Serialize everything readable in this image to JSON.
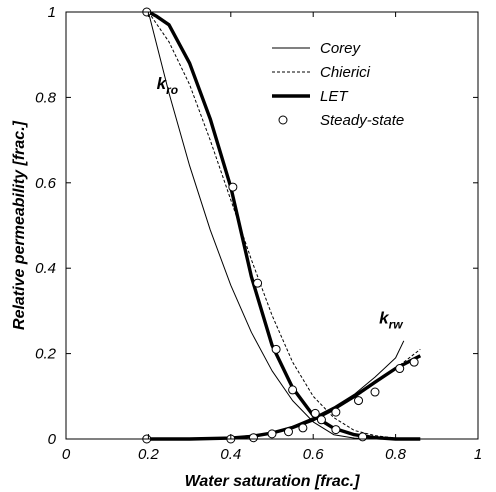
{
  "chart_data": {
    "type": "line",
    "title": "",
    "xlabel": "Water saturation [frac.]",
    "ylabel": "Relative permeability [frac.]",
    "xlim": [
      0,
      1
    ],
    "ylim": [
      0,
      1
    ],
    "x_ticks": [
      0,
      0.2,
      0.4,
      0.6,
      0.8,
      1
    ],
    "x_tick_labels": [
      "0",
      "0.2",
      "0.4",
      "0.6",
      "0.8",
      "1"
    ],
    "y_ticks": [
      0,
      0.2,
      0.4,
      0.6,
      0.8,
      1
    ],
    "y_tick_labels": [
      "0",
      "0.2",
      "0.4",
      "0.6",
      "0.8",
      "1"
    ],
    "grid": false,
    "legend_position": "top-right",
    "legend": [
      {
        "label": "Corey",
        "style": "thin-solid"
      },
      {
        "label": "Chierici",
        "style": "dotted"
      },
      {
        "label": "LET",
        "style": "thick-solid"
      },
      {
        "label": "Steady-state",
        "style": "open-circle"
      }
    ],
    "annotations": [
      {
        "text": "k",
        "sub": "ro",
        "x": 0.22,
        "y": 0.82
      },
      {
        "text": "k",
        "sub": "rw",
        "x": 0.76,
        "y": 0.27
      }
    ],
    "series": [
      {
        "name": "Corey",
        "group": "kro",
        "style": "thin-solid",
        "x": [
          0.2,
          0.25,
          0.3,
          0.35,
          0.4,
          0.45,
          0.5,
          0.55,
          0.6,
          0.65,
          0.7,
          0.75
        ],
        "y": [
          1.0,
          0.81,
          0.64,
          0.49,
          0.36,
          0.25,
          0.16,
          0.09,
          0.04,
          0.01,
          0.002,
          0.0
        ]
      },
      {
        "name": "Corey",
        "group": "krw",
        "style": "thin-solid",
        "x": [
          0.2,
          0.3,
          0.4,
          0.5,
          0.55,
          0.6,
          0.65,
          0.7,
          0.75,
          0.8,
          0.82
        ],
        "y": [
          0.0,
          0.0,
          0.003,
          0.015,
          0.03,
          0.05,
          0.075,
          0.105,
          0.145,
          0.19,
          0.23
        ]
      },
      {
        "name": "Chierici",
        "group": "kro",
        "style": "dotted",
        "x": [
          0.2,
          0.25,
          0.3,
          0.35,
          0.4,
          0.45,
          0.5,
          0.55,
          0.6,
          0.65,
          0.7,
          0.75,
          0.8,
          0.85
        ],
        "y": [
          1.0,
          0.93,
          0.83,
          0.7,
          0.56,
          0.42,
          0.29,
          0.18,
          0.1,
          0.05,
          0.02,
          0.008,
          0.002,
          0.0
        ]
      },
      {
        "name": "Chierici",
        "group": "krw",
        "style": "dotted",
        "x": [
          0.2,
          0.3,
          0.4,
          0.45,
          0.5,
          0.55,
          0.6,
          0.65,
          0.7,
          0.75,
          0.8,
          0.86
        ],
        "y": [
          0.0,
          0.0,
          0.002,
          0.006,
          0.015,
          0.028,
          0.045,
          0.068,
          0.097,
          0.13,
          0.165,
          0.21
        ]
      },
      {
        "name": "LET",
        "group": "kro",
        "style": "thick-solid",
        "x": [
          0.2,
          0.22,
          0.25,
          0.3,
          0.35,
          0.4,
          0.45,
          0.5,
          0.55,
          0.6,
          0.65,
          0.7,
          0.75,
          0.8,
          0.86
        ],
        "y": [
          1.0,
          0.99,
          0.97,
          0.88,
          0.75,
          0.59,
          0.38,
          0.22,
          0.12,
          0.055,
          0.025,
          0.01,
          0.003,
          0.0,
          0.0
        ]
      },
      {
        "name": "LET",
        "group": "krw",
        "style": "thick-solid",
        "x": [
          0.2,
          0.3,
          0.4,
          0.45,
          0.5,
          0.55,
          0.6,
          0.65,
          0.7,
          0.75,
          0.8,
          0.86
        ],
        "y": [
          0.0,
          0.0,
          0.002,
          0.006,
          0.014,
          0.027,
          0.045,
          0.07,
          0.1,
          0.133,
          0.165,
          0.195
        ]
      },
      {
        "name": "Steady-state",
        "group": "kro",
        "style": "open-circle",
        "x": [
          0.196,
          0.405,
          0.465,
          0.51,
          0.55,
          0.605,
          0.655,
          0.72
        ],
        "y": [
          1.0,
          0.59,
          0.365,
          0.21,
          0.115,
          0.06,
          0.022,
          0.005
        ]
      },
      {
        "name": "Steady-state",
        "group": "krw",
        "style": "open-circle",
        "x": [
          0.196,
          0.4,
          0.455,
          0.5,
          0.54,
          0.575,
          0.62,
          0.655,
          0.71,
          0.75,
          0.81,
          0.845
        ],
        "y": [
          0.0,
          0.0,
          0.003,
          0.012,
          0.017,
          0.026,
          0.045,
          0.063,
          0.09,
          0.11,
          0.165,
          0.18
        ]
      }
    ]
  }
}
